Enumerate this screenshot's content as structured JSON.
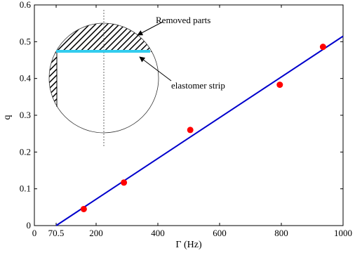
{
  "chart_data": {
    "type": "scatter",
    "xlabel": "Γ (Hz)",
    "ylabel": "q",
    "xlim": [
      0,
      1000
    ],
    "ylim": [
      0,
      0.6
    ],
    "x_ticks": [
      0,
      70.5,
      200,
      400,
      600,
      800,
      1000
    ],
    "x_tick_labels": [
      "0",
      "70.5",
      "200",
      "400",
      "600",
      "800",
      "1000"
    ],
    "y_ticks": [
      0,
      0.1,
      0.2,
      0.3,
      0.4,
      0.5,
      0.6
    ],
    "y_tick_labels": [
      "0",
      "0.1",
      "0.2",
      "0.3",
      "0.4",
      "0.5",
      "0.6"
    ],
    "grid": false,
    "series": [
      {
        "kind": "points",
        "color": "#ff0000",
        "points": [
          {
            "x": 160,
            "y": 0.045
          },
          {
            "x": 290,
            "y": 0.117
          },
          {
            "x": 505,
            "y": 0.26
          },
          {
            "x": 795,
            "y": 0.383
          },
          {
            "x": 935,
            "y": 0.486
          }
        ]
      },
      {
        "kind": "line",
        "color": "#0000cc",
        "points": [
          {
            "x": 70.5,
            "y": 0
          },
          {
            "x": 1000,
            "y": 0.515
          }
        ]
      }
    ],
    "inset": {
      "annotations": [
        {
          "id": "removed",
          "text": "Removed parts"
        },
        {
          "id": "strip",
          "text": "elastomer strip"
        }
      ],
      "strip_color": "#33ccee"
    }
  }
}
